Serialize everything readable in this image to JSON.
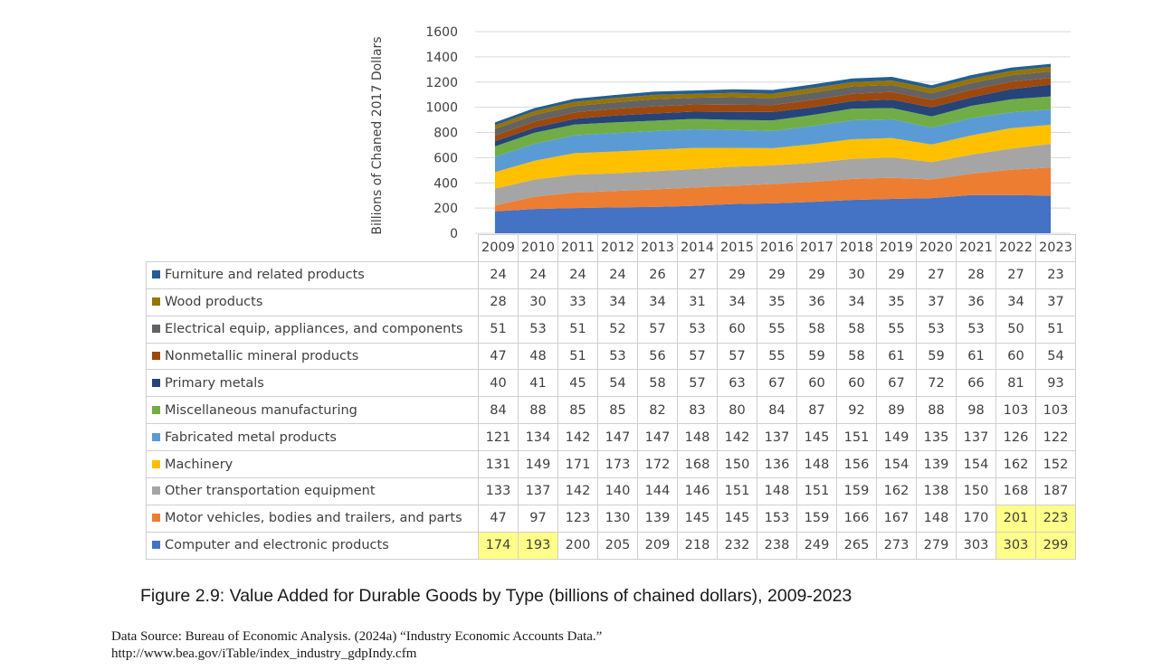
{
  "chart_data": {
    "type": "area",
    "stacked": true,
    "ylabel": "Billions of Chaned 2017 Dollars",
    "ylim": [
      0,
      1600
    ],
    "yticks": [
      0,
      200,
      400,
      600,
      800,
      1000,
      1200,
      1400,
      1600
    ],
    "grid": true,
    "years": [
      "2009",
      "2010",
      "2011",
      "2012",
      "2013",
      "2014",
      "2015",
      "2016",
      "2017",
      "2018",
      "2019",
      "2020",
      "2021",
      "2022",
      "2023"
    ],
    "series": [
      {
        "name": "Computer and electronic products",
        "color": "#4472c4",
        "values": [
          174,
          193,
          200,
          205,
          209,
          218,
          232,
          238,
          249,
          265,
          273,
          279,
          303,
          303,
          299
        ]
      },
      {
        "name": "Motor vehicles, bodies and trailers, and parts",
        "color": "#ed7d31",
        "values": [
          47,
          97,
          123,
          130,
          139,
          145,
          145,
          153,
          159,
          166,
          167,
          148,
          170,
          201,
          223
        ]
      },
      {
        "name": "Other transportation equipment",
        "color": "#a5a5a5",
        "values": [
          133,
          137,
          142,
          140,
          144,
          146,
          151,
          148,
          151,
          159,
          162,
          138,
          150,
          168,
          187
        ]
      },
      {
        "name": "Machinery",
        "color": "#ffc000",
        "values": [
          131,
          149,
          171,
          173,
          172,
          168,
          150,
          136,
          148,
          156,
          154,
          139,
          154,
          162,
          152
        ]
      },
      {
        "name": "Fabricated metal products",
        "color": "#5b9bd5",
        "values": [
          121,
          134,
          142,
          147,
          147,
          148,
          142,
          137,
          145,
          151,
          149,
          135,
          137,
          126,
          122
        ]
      },
      {
        "name": "Miscellaneous manufacturing",
        "color": "#70ad47",
        "values": [
          84,
          88,
          85,
          85,
          82,
          83,
          80,
          84,
          87,
          92,
          89,
          88,
          98,
          103,
          103
        ]
      },
      {
        "name": "Primary metals",
        "color": "#264478",
        "values": [
          40,
          41,
          45,
          54,
          58,
          57,
          63,
          67,
          60,
          60,
          67,
          72,
          66,
          81,
          93
        ]
      },
      {
        "name": "Nonmetallic mineral products",
        "color": "#9e480e",
        "values": [
          47,
          48,
          51,
          53,
          56,
          57,
          57,
          55,
          59,
          58,
          61,
          59,
          61,
          60,
          54
        ]
      },
      {
        "name": "Electrical equip, appliances, and components",
        "color": "#636363",
        "values": [
          51,
          53,
          51,
          52,
          57,
          53,
          60,
          55,
          58,
          58,
          55,
          53,
          53,
          50,
          51
        ]
      },
      {
        "name": "Wood products",
        "color": "#997300",
        "values": [
          28,
          30,
          33,
          34,
          34,
          31,
          34,
          35,
          36,
          34,
          35,
          37,
          36,
          34,
          37
        ]
      },
      {
        "name": "Furniture and related products",
        "color": "#255e91",
        "values": [
          24,
          24,
          24,
          24,
          26,
          27,
          29,
          29,
          29,
          30,
          29,
          27,
          28,
          27,
          23
        ]
      }
    ],
    "highlighted": [
      {
        "series": "Motor vehicles, bodies and trailers, and parts",
        "years": [
          "2022",
          "2023"
        ]
      },
      {
        "series": "Computer and electronic products",
        "years": [
          "2009",
          "2010",
          "2022",
          "2023"
        ]
      }
    ]
  },
  "caption": "Figure 2.9: Value Added for Durable Goods by Type (billions of chained dollars), 2009-2023",
  "source": {
    "line1": "Data Source: Bureau of Economic Analysis. (2024a) “Industry Economic Accounts Data.”",
    "line2": "http://www.bea.gov/iTable/index_industry_gdpIndy.cfm"
  }
}
